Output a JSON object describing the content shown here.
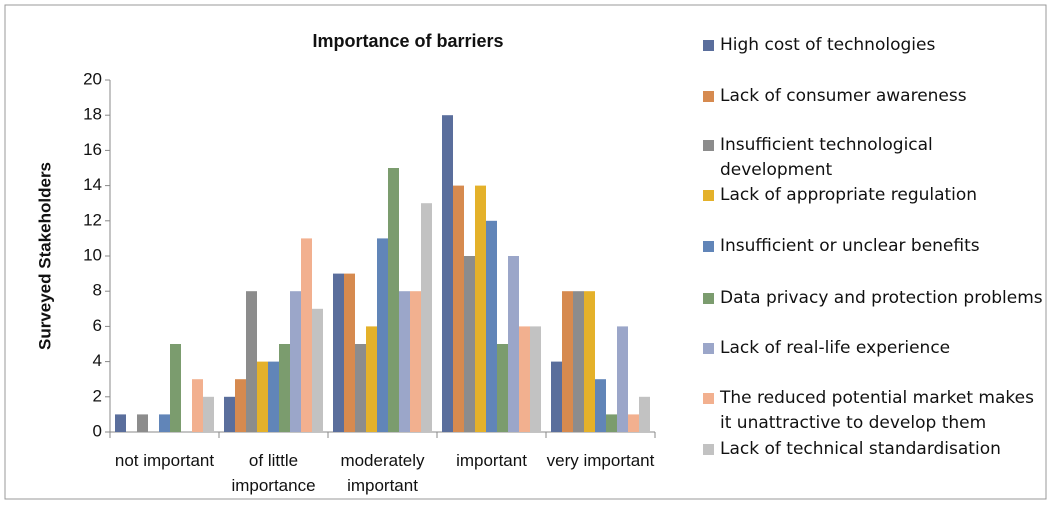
{
  "chart_data": {
    "type": "bar",
    "title": "Importance of barriers",
    "y_label": "Surveyed Stakeholders",
    "categories": [
      "not important",
      "of little importance",
      "moderately important",
      "important",
      "very important"
    ],
    "ylim": [
      0,
      20
    ],
    "yticks": [
      0,
      2,
      4,
      6,
      8,
      10,
      12,
      14,
      16,
      18,
      20
    ],
    "grid": false,
    "legend": "right",
    "series": [
      {
        "name": "High cost of technologies",
        "color": "#5a6e9c",
        "values": [
          1,
          2,
          9,
          18,
          4
        ]
      },
      {
        "name": "Lack of consumer awareness",
        "color": "#d68a4f",
        "values": [
          0,
          3,
          9,
          14,
          8
        ]
      },
      {
        "name": "Insufficient technological development",
        "color": "#8c8c8c",
        "values": [
          1,
          8,
          5,
          10,
          8
        ]
      },
      {
        "name": "Lack of appropriate regulation",
        "color": "#e4b12a",
        "values": [
          0,
          4,
          6,
          14,
          8
        ]
      },
      {
        "name": "Insufficient or unclear benefits",
        "color": "#6185b8",
        "values": [
          1,
          4,
          11,
          12,
          3
        ]
      },
      {
        "name": "Data privacy and protection problems",
        "color": "#7b9c6e",
        "values": [
          5,
          5,
          15,
          5,
          1
        ]
      },
      {
        "name": "Lack of real-life experience",
        "color": "#9ba6c9",
        "values": [
          0,
          8,
          8,
          10,
          6
        ]
      },
      {
        "name": "The reduced potential market makes it unattractive to develop them",
        "color": "#f2b08f",
        "values": [
          3,
          11,
          8,
          6,
          1
        ]
      },
      {
        "name": "Lack of technical standardisation",
        "color": "#c2c2c2",
        "values": [
          2,
          7,
          13,
          6,
          2
        ]
      }
    ]
  }
}
